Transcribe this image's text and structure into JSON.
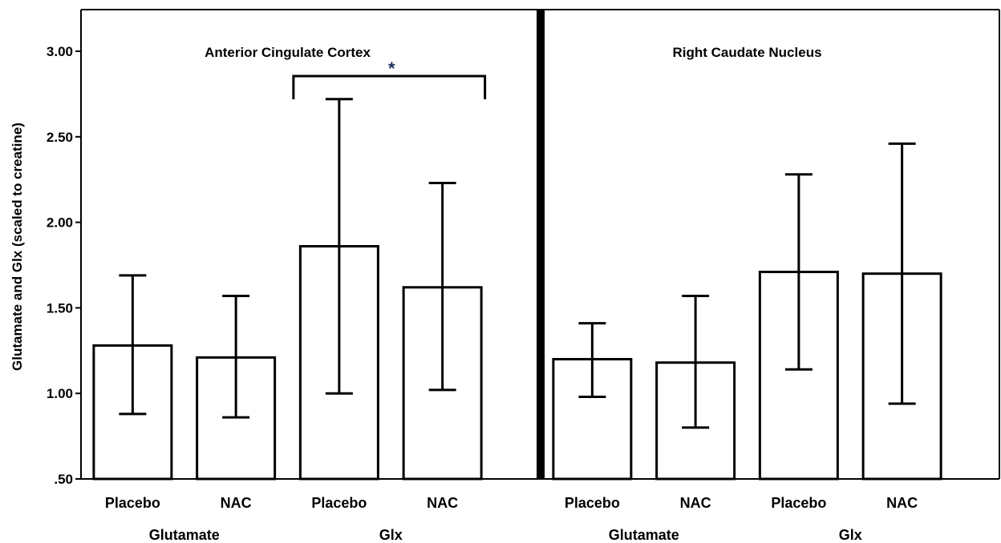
{
  "chart_data": {
    "type": "bar",
    "ylabel": "Glutamate and Glx (scaled to creatine)",
    "ylim": [
      0.5,
      3.25
    ],
    "yticks": [
      ".50",
      "1.00",
      "1.50",
      "2.00",
      "2.50",
      "3.00"
    ],
    "ytick_values": [
      0.5,
      1.0,
      1.5,
      2.0,
      2.5,
      3.0
    ],
    "grid": false,
    "panels": [
      {
        "title": "Anterior Cingulate Cortex",
        "groups": [
          "Glutamate",
          "Glx"
        ],
        "categories": [
          "Placebo",
          "NAC",
          "Placebo",
          "NAC"
        ],
        "values": [
          1.28,
          1.21,
          1.86,
          1.62
        ],
        "error_low": [
          0.88,
          0.86,
          1.0,
          1.02
        ],
        "error_high": [
          1.69,
          1.57,
          2.72,
          2.23
        ],
        "annotation": "*"
      },
      {
        "title": "Right Caudate Nucleus",
        "groups": [
          "Glutamate",
          "Glx"
        ],
        "categories": [
          "Placebo",
          "NAC",
          "Placebo",
          "NAC"
        ],
        "values": [
          1.2,
          1.18,
          1.71,
          1.7
        ],
        "error_low": [
          0.98,
          0.8,
          1.14,
          0.94
        ],
        "error_high": [
          1.41,
          1.57,
          2.28,
          2.46
        ]
      }
    ]
  }
}
